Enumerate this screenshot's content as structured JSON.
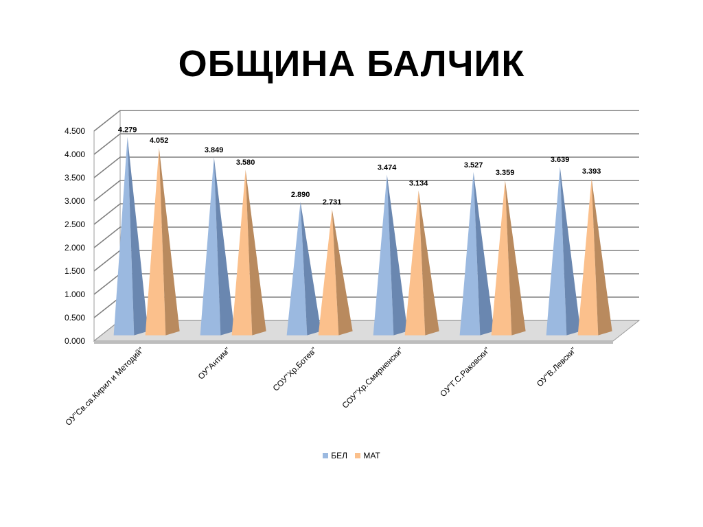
{
  "page": {
    "title": "ОБЩИНА БАЛЧИК"
  },
  "chart_data": {
    "type": "bar",
    "title": "ОБЩИНА БАЛЧИК",
    "xlabel": "",
    "ylabel": "",
    "ylim": [
      0,
      4.5
    ],
    "yticks": [
      "0.000",
      "0.500",
      "1.000",
      "1.500",
      "2.000",
      "2.500",
      "3.000",
      "3.500",
      "4.000",
      "4.500"
    ],
    "categories": [
      "ОУ\"Св.св.Кирил и Методий\"",
      "ОУ\"Антим\"",
      "СОУ\"Хр.Ботев\"",
      "СОУ\"Хр.Смирненски\"",
      "ОУ\"Г.С.Раковски\"",
      "ОУ\"В.Левски\""
    ],
    "series": [
      {
        "name": "БЕЛ",
        "values": [
          4.279,
          3.849,
          2.89,
          3.474,
          3.527,
          3.639
        ],
        "labels": [
          "4.279",
          "3.849",
          "2.890",
          "3.474",
          "3.527",
          "3.639"
        ],
        "color": "#9bb9e0",
        "dark": "#6a87b0"
      },
      {
        "name": "МАТ",
        "values": [
          4.052,
          3.58,
          2.731,
          3.134,
          3.359,
          3.393
        ],
        "labels": [
          "4.052",
          "3.580",
          "2.731",
          "3.134",
          "3.359",
          "3.393"
        ],
        "color": "#fbc08c",
        "dark": "#b98a5e"
      }
    ],
    "grid": true,
    "legend_position": "bottom",
    "style": "3d-pyramid"
  }
}
